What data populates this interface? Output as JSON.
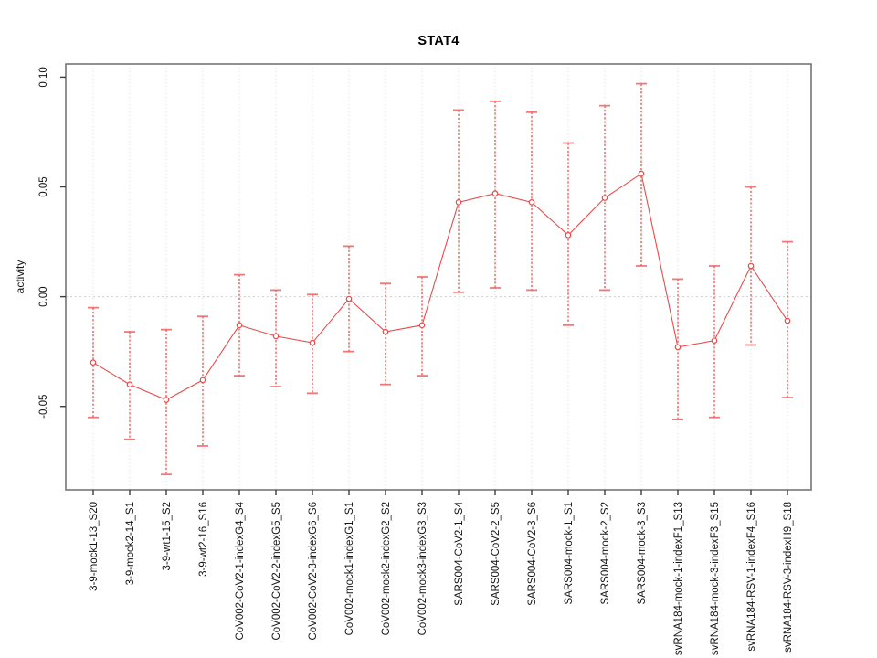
{
  "chart_data": {
    "type": "line",
    "subtype": "points-with-error-bars",
    "title": "STAT4",
    "xlabel": "",
    "ylabel": "activity",
    "marker": "open-circle",
    "legend": "none",
    "grid": "vertical-dotted",
    "zero_line_dotted": true,
    "ylim": [
      -0.088,
      0.106
    ],
    "yticks": [
      -0.05,
      0.0,
      0.05,
      0.1
    ],
    "ytick_labels": [
      "-0.05",
      "0.00",
      "0.05",
      "0.10"
    ],
    "categories": [
      "3-9-mock1-13_S20",
      "3-9-mock2-14_S1",
      "3-9-wt1-15_S2",
      "3-9-wt2-16_S16",
      "CoV002-CoV2-1-indexG4_S4",
      "CoV002-CoV2-2-indexG5_S5",
      "CoV002-CoV2-3-indexG6_S6",
      "CoV002-mock1-indexG1_S1",
      "CoV002-mock2-indexG2_S2",
      "CoV002-mock3-indexG3_S3",
      "SARS004-CoV2-1_S4",
      "SARS004-CoV2-2_S5",
      "SARS004-CoV2-3_S6",
      "SARS004-mock-1_S1",
      "SARS004-mock-2_S2",
      "SARS004-mock-3_S3",
      "svRNA184-mock-1-indexF1_S13",
      "svRNA184-mock-3-indexF3_S15",
      "svRNA184-RSV-1-indexF4_S16",
      "svRNA184-RSV-3-indexH9_S18"
    ],
    "series": [
      {
        "name": "activity",
        "values": [
          -0.03,
          -0.04,
          -0.047,
          -0.038,
          -0.013,
          -0.018,
          -0.021,
          -0.001,
          -0.016,
          -0.013,
          0.043,
          0.047,
          0.043,
          0.028,
          0.045,
          0.056,
          -0.023,
          -0.02,
          0.014,
          -0.011
        ],
        "ci_low": [
          -0.055,
          -0.065,
          -0.081,
          -0.068,
          -0.036,
          -0.041,
          -0.044,
          -0.025,
          -0.04,
          -0.036,
          0.002,
          0.004,
          0.003,
          -0.013,
          0.003,
          0.014,
          -0.056,
          -0.055,
          -0.022,
          -0.046
        ],
        "ci_high": [
          -0.005,
          -0.016,
          -0.015,
          -0.009,
          0.01,
          0.003,
          0.001,
          0.023,
          0.006,
          0.009,
          0.085,
          0.089,
          0.084,
          0.07,
          0.087,
          0.097,
          0.008,
          0.014,
          0.05,
          0.025
        ]
      }
    ],
    "colors": {
      "series": "#e84b4b",
      "error_bar": "#f06262",
      "grid": "#dadada",
      "zero_line": "#cfcfcf",
      "box": "#767676",
      "text": "#141414"
    }
  }
}
